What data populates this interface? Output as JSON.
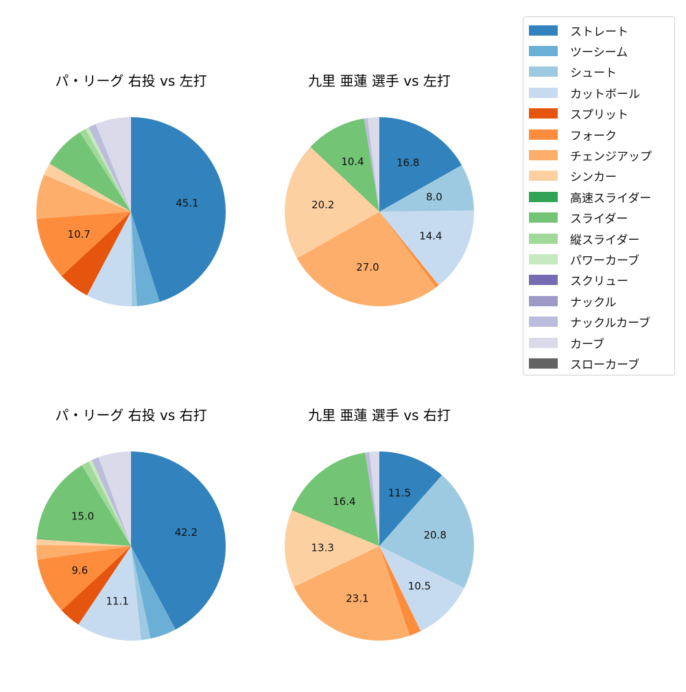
{
  "legend": {
    "items": [
      {
        "label": "ストレート",
        "color": "#3182bd"
      },
      {
        "label": "ツーシーム",
        "color": "#6baed6"
      },
      {
        "label": "シュート",
        "color": "#9ecae1"
      },
      {
        "label": "カットボール",
        "color": "#c6dbef"
      },
      {
        "label": "スプリット",
        "color": "#e6550d"
      },
      {
        "label": "フォーク",
        "color": "#fd8d3c"
      },
      {
        "label": "チェンジアップ",
        "color": "#fdae6b"
      },
      {
        "label": "シンカー",
        "color": "#fdd0a2"
      },
      {
        "label": "高速スライダー",
        "color": "#31a354"
      },
      {
        "label": "スライダー",
        "color": "#74c476"
      },
      {
        "label": "縦スライダー",
        "color": "#a1d99b"
      },
      {
        "label": "パワーカーブ",
        "color": "#c7e9c0"
      },
      {
        "label": "スクリュー",
        "color": "#756bb1"
      },
      {
        "label": "ナックル",
        "color": "#9e9ac8"
      },
      {
        "label": "ナックルカーブ",
        "color": "#bcbddc"
      },
      {
        "label": "カーブ",
        "color": "#dadaeb"
      },
      {
        "label": "スローカーブ",
        "color": "#636363"
      }
    ]
  },
  "chart_data": [
    {
      "type": "pie",
      "title": "パ・リーグ 右投 vs 左打",
      "categories": [
        "ストレート",
        "ツーシーム",
        "シュート",
        "カットボール",
        "スプリット",
        "フォーク",
        "チェンジアップ",
        "シンカー",
        "高速スライダー",
        "スライダー",
        "縦スライダー",
        "パワーカーブ",
        "スクリュー",
        "ナックル",
        "ナックルカーブ",
        "カーブ",
        "スローカーブ"
      ],
      "values": [
        45.1,
        3.9,
        0.9,
        7.8,
        5.4,
        10.7,
        7.6,
        2.1,
        0.0,
        7.4,
        1.1,
        0.6,
        0.0,
        0.0,
        1.3,
        6.1,
        0.0
      ],
      "labels_shown": [
        "45.1",
        "10.7"
      ]
    },
    {
      "type": "pie",
      "title": "九里 亜蓮 選手 vs 左打",
      "categories": [
        "ストレート",
        "ツーシーム",
        "シュート",
        "カットボール",
        "スプリット",
        "フォーク",
        "チェンジアップ",
        "シンカー",
        "高速スライダー",
        "スライダー",
        "縦スライダー",
        "パワーカーブ",
        "スクリュー",
        "ナックル",
        "ナックルカーブ",
        "カーブ",
        "スローカーブ"
      ],
      "values": [
        16.8,
        0.0,
        8.0,
        14.4,
        0.0,
        0.6,
        27.0,
        20.2,
        0.0,
        10.4,
        0.0,
        0.0,
        0.0,
        0.0,
        0.6,
        2.0,
        0.0
      ],
      "labels_shown": [
        "16.8",
        "8.0",
        "14.4",
        "27.0",
        "20.2",
        "10.4"
      ]
    },
    {
      "type": "pie",
      "title": "パ・リーグ 右投 vs 右打",
      "categories": [
        "ストレート",
        "ツーシーム",
        "シュート",
        "カットボール",
        "スプリット",
        "フォーク",
        "チェンジアップ",
        "シンカー",
        "高速スライダー",
        "スライダー",
        "縦スライダー",
        "パワーカーブ",
        "スクリュー",
        "ナックル",
        "ナックルカーブ",
        "カーブ",
        "スローカーブ"
      ],
      "values": [
        42.2,
        4.5,
        1.6,
        11.1,
        3.7,
        9.6,
        2.5,
        1.0,
        0.1,
        15.0,
        1.3,
        0.6,
        0.0,
        0.0,
        1.2,
        5.6,
        0.0
      ],
      "labels_shown": [
        "42.2",
        "11.1",
        "9.6",
        "15.0"
      ]
    },
    {
      "type": "pie",
      "title": "九里 亜蓮 選手 vs 右打",
      "categories": [
        "ストレート",
        "ツーシーム",
        "シュート",
        "カットボール",
        "スプリット",
        "フォーク",
        "チェンジアップ",
        "シンカー",
        "高速スライダー",
        "スライダー",
        "縦スライダー",
        "パワーカーブ",
        "スクリュー",
        "ナックル",
        "ナックルカーブ",
        "カーブ",
        "スローカーブ"
      ],
      "values": [
        11.5,
        0.0,
        20.8,
        10.5,
        0.0,
        2.0,
        23.1,
        13.3,
        0.0,
        16.4,
        0.0,
        0.0,
        0.0,
        0.0,
        0.7,
        1.7,
        0.0
      ],
      "labels_shown": [
        "11.5",
        "20.8",
        "10.5",
        "23.1",
        "13.3",
        "16.4"
      ]
    }
  ],
  "panels": [
    {
      "title": "パ・リーグ 右投 vs 左打"
    },
    {
      "title": "九里 亜蓮 選手 vs 左打"
    },
    {
      "title": "パ・リーグ 右投 vs 右打"
    },
    {
      "title": "九里 亜蓮 選手 vs 右打"
    }
  ]
}
